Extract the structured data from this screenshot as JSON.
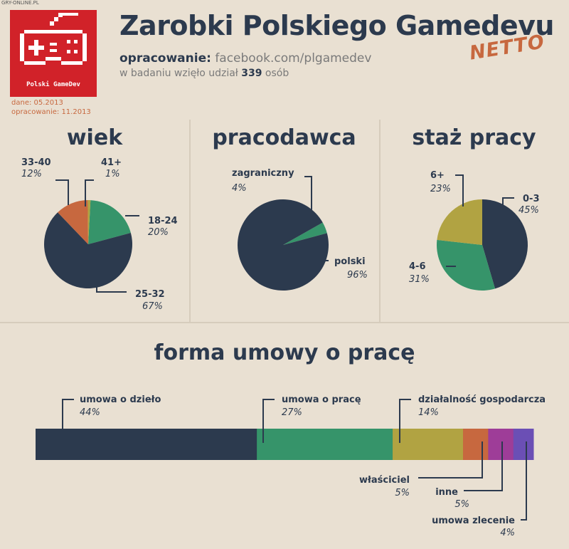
{
  "watermark": "GRY-ONLINE.PL",
  "logo": {
    "text": "Polski GameDev"
  },
  "header": {
    "title": "Zarobki Polskiego Gamedevu",
    "source_label": "opracowanie:",
    "source_url": "facebook.com/plgamedev",
    "participants_pre": "w badaniu wzięło udział",
    "participants_count": "339",
    "participants_post": "osób",
    "netto": "NETTO",
    "data_date": "dane: 05.2013",
    "compiled_date": "opracowanie: 11.2013"
  },
  "colors": {
    "background": "#e9e0d2",
    "navy": "#2c3a4e",
    "green": "#36946a",
    "olive": "#b1a342",
    "orange": "#c7683f",
    "magenta": "#9e3d98",
    "purple": "#6b4fb5",
    "logo_red": "#d12229"
  },
  "chart_data": [
    {
      "type": "pie",
      "title": "wiek",
      "slices": [
        {
          "label": "18-24",
          "value": 20,
          "display": "20%",
          "color": "#36946a"
        },
        {
          "label": "25-32",
          "value": 67,
          "display": "67%",
          "color": "#2c3a4e"
        },
        {
          "label": "33-40",
          "value": 12,
          "display": "12%",
          "color": "#c7683f"
        },
        {
          "label": "41+",
          "value": 1,
          "display": "1%",
          "color": "#b1a342"
        }
      ]
    },
    {
      "type": "pie",
      "title": "pracodawca",
      "slices": [
        {
          "label": "zagraniczny",
          "value": 4,
          "display": "4%",
          "color": "#36946a"
        },
        {
          "label": "polski",
          "value": 96,
          "display": "96%",
          "color": "#2c3a4e"
        }
      ]
    },
    {
      "type": "pie",
      "title": "staż pracy",
      "slices": [
        {
          "label": "0-3",
          "value": 45,
          "display": "45%",
          "color": "#2c3a4e"
        },
        {
          "label": "4-6",
          "value": 31,
          "display": "31%",
          "color": "#36946a"
        },
        {
          "label": "6+",
          "value": 23,
          "display": "23%",
          "color": "#b1a342"
        }
      ]
    },
    {
      "type": "bar",
      "orientation": "horizontal-stacked",
      "title": "forma umowy o pracę",
      "segments": [
        {
          "label": "umowa o dzieło",
          "value": 44,
          "display": "44%",
          "color": "#2c3a4e"
        },
        {
          "label": "umowa o pracę",
          "value": 27,
          "display": "27%",
          "color": "#36946a"
        },
        {
          "label": "działalność gospodarcza",
          "value": 14,
          "display": "14%",
          "color": "#b1a342"
        },
        {
          "label": "właściciel",
          "value": 5,
          "display": "5%",
          "color": "#c7683f"
        },
        {
          "label": "inne",
          "value": 5,
          "display": "5%",
          "color": "#9e3d98"
        },
        {
          "label": "umowa zlecenie",
          "value": 4,
          "display": "4%",
          "color": "#6b4fb5"
        }
      ]
    }
  ]
}
